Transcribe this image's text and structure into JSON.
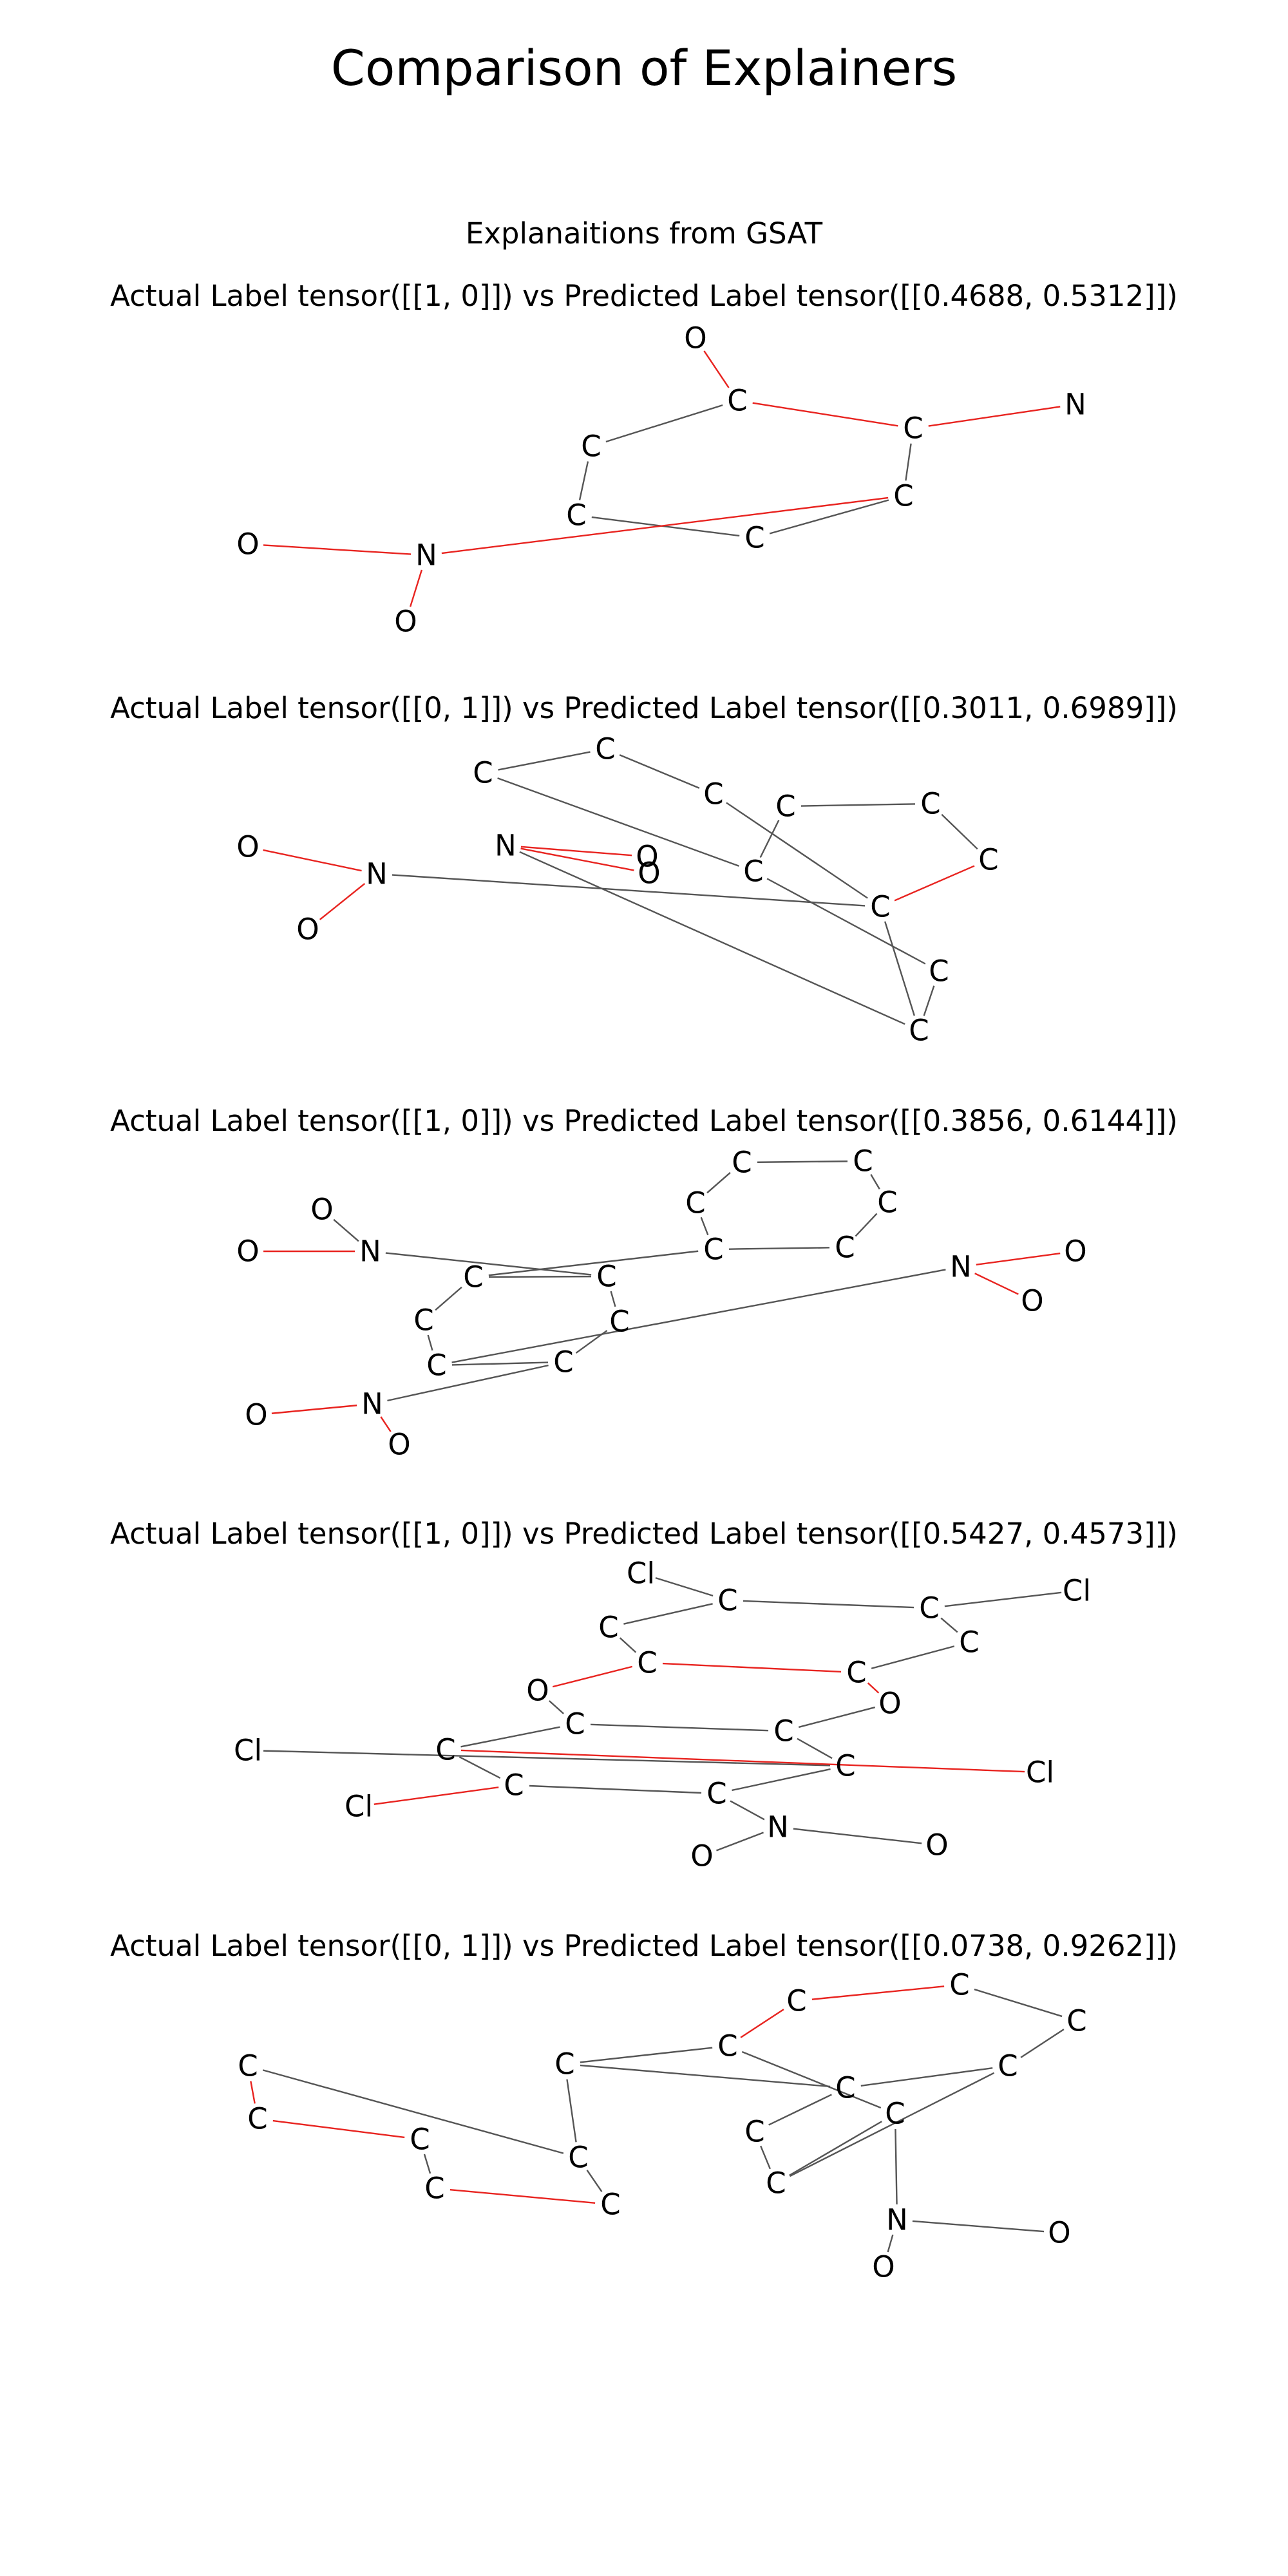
{
  "title": "Comparison of Explainers",
  "subtitle": "Explanaitions from GSAT",
  "colors": {
    "background": "#ffffff",
    "normal_bond": "#555555",
    "highlight_bond": "#e8231f",
    "text": "#000000"
  },
  "panels": [
    {
      "title": "Actual Label tensor([[1, 0]]) vs Predicted Label tensor([[0.4688, 0.5312]])",
      "atoms": [
        "O",
        "C",
        "C",
        "N",
        "C",
        "C",
        "C",
        "C",
        "N",
        "O",
        "O"
      ],
      "bonds": [
        [
          0,
          1,
          1
        ],
        [
          1,
          2,
          1
        ],
        [
          2,
          3,
          1
        ],
        [
          1,
          4,
          0
        ],
        [
          4,
          5,
          0
        ],
        [
          5,
          6,
          0
        ],
        [
          6,
          7,
          0
        ],
        [
          7,
          2,
          0
        ],
        [
          7,
          8,
          1
        ],
        [
          8,
          9,
          1
        ],
        [
          8,
          10,
          1
        ]
      ]
    },
    {
      "title": "Actual Label tensor([[0, 1]]) vs Predicted Label tensor([[0.3011, 0.6989]])",
      "atoms": [
        "C",
        "C",
        "C",
        "C",
        "C",
        "C",
        "C",
        "C",
        "C",
        "C",
        "O",
        "N",
        "O",
        "N",
        "O",
        "O"
      ],
      "bonds": [
        [
          0,
          1,
          0
        ],
        [
          1,
          2,
          0
        ],
        [
          2,
          7,
          0
        ],
        [
          7,
          6,
          1
        ],
        [
          6,
          5,
          0
        ],
        [
          5,
          4,
          0
        ],
        [
          4,
          3,
          0
        ],
        [
          3,
          0,
          0
        ],
        [
          3,
          8,
          0
        ],
        [
          8,
          9,
          0
        ],
        [
          9,
          7,
          0
        ],
        [
          11,
          10,
          1
        ],
        [
          11,
          12,
          1
        ],
        [
          11,
          7,
          0
        ],
        [
          13,
          9,
          0
        ],
        [
          13,
          14,
          1
        ],
        [
          13,
          15,
          1
        ]
      ]
    },
    {
      "title": "Actual Label tensor([[1, 0]]) vs Predicted Label tensor([[0.3856, 0.6144]])",
      "atoms": [
        "C",
        "C",
        "C",
        "C",
        "C",
        "C",
        "O",
        "N",
        "O",
        "C",
        "C",
        "C",
        "C",
        "C",
        "C",
        "N",
        "O",
        "O",
        "N",
        "O",
        "O"
      ],
      "bonds": [
        [
          0,
          1,
          0
        ],
        [
          1,
          2,
          0
        ],
        [
          2,
          3,
          0
        ],
        [
          3,
          4,
          0
        ],
        [
          4,
          5,
          0
        ],
        [
          5,
          0,
          0
        ],
        [
          4,
          9,
          0
        ],
        [
          9,
          10,
          0
        ],
        [
          10,
          11,
          0
        ],
        [
          11,
          12,
          0
        ],
        [
          12,
          13,
          0
        ],
        [
          13,
          14,
          0
        ],
        [
          14,
          9,
          0
        ],
        [
          6,
          7,
          0
        ],
        [
          7,
          8,
          1
        ],
        [
          7,
          10,
          0
        ],
        [
          13,
          15,
          0
        ],
        [
          15,
          16,
          1
        ],
        [
          15,
          17,
          1
        ],
        [
          12,
          18,
          0
        ],
        [
          18,
          19,
          1
        ],
        [
          18,
          20,
          1
        ]
      ]
    },
    {
      "title": "Actual Label tensor([[1, 0]]) vs Predicted Label tensor([[0.5427, 0.4573]])",
      "atoms": [
        "Cl",
        "C",
        "C",
        "Cl",
        "C",
        "C",
        "C",
        "C",
        "O",
        "O",
        "C",
        "C",
        "Cl",
        "C",
        "C",
        "C",
        "C",
        "Cl",
        "Cl",
        "N",
        "O",
        "O"
      ],
      "bonds": [
        [
          0,
          1,
          0
        ],
        [
          1,
          2,
          0
        ],
        [
          2,
          3,
          0
        ],
        [
          1,
          4,
          0
        ],
        [
          4,
          5,
          0
        ],
        [
          2,
          6,
          0
        ],
        [
          6,
          7,
          0
        ],
        [
          5,
          7,
          1
        ],
        [
          5,
          8,
          1
        ],
        [
          7,
          9,
          1
        ],
        [
          9,
          11,
          0
        ],
        [
          8,
          10,
          0
        ],
        [
          10,
          11,
          0
        ],
        [
          10,
          13,
          0
        ],
        [
          11,
          16,
          0
        ],
        [
          16,
          12,
          0
        ],
        [
          13,
          14,
          0
        ],
        [
          14,
          15,
          0
        ],
        [
          15,
          16,
          0
        ],
        [
          13,
          17,
          1
        ],
        [
          14,
          18,
          1
        ],
        [
          15,
          19,
          0
        ],
        [
          19,
          20,
          0
        ],
        [
          19,
          21,
          0
        ]
      ]
    },
    {
      "title": "Actual Label tensor([[0, 1]]) vs Predicted Label tensor([[0.0738, 0.9262]])",
      "atoms": [
        "C",
        "C",
        "C",
        "C",
        "C",
        "C",
        "C",
        "C",
        "C",
        "C",
        "C",
        "C",
        "C",
        "C",
        "C",
        "C",
        "N",
        "O",
        "O"
      ],
      "bonds": [
        [
          0,
          1,
          1
        ],
        [
          1,
          2,
          1
        ],
        [
          2,
          3,
          0
        ],
        [
          3,
          4,
          1
        ],
        [
          4,
          5,
          0
        ],
        [
          5,
          0,
          0
        ],
        [
          5,
          6,
          0
        ],
        [
          6,
          7,
          0
        ],
        [
          7,
          8,
          1
        ],
        [
          8,
          9,
          1
        ],
        [
          9,
          10,
          0
        ],
        [
          10,
          11,
          0
        ],
        [
          11,
          12,
          0
        ],
        [
          12,
          13,
          0
        ],
        [
          13,
          14,
          0
        ],
        [
          14,
          15,
          0
        ],
        [
          15,
          7,
          0
        ],
        [
          14,
          11,
          0
        ],
        [
          12,
          6,
          0
        ],
        [
          15,
          16,
          0
        ],
        [
          16,
          17,
          0
        ],
        [
          16,
          18,
          0
        ]
      ]
    }
  ]
}
